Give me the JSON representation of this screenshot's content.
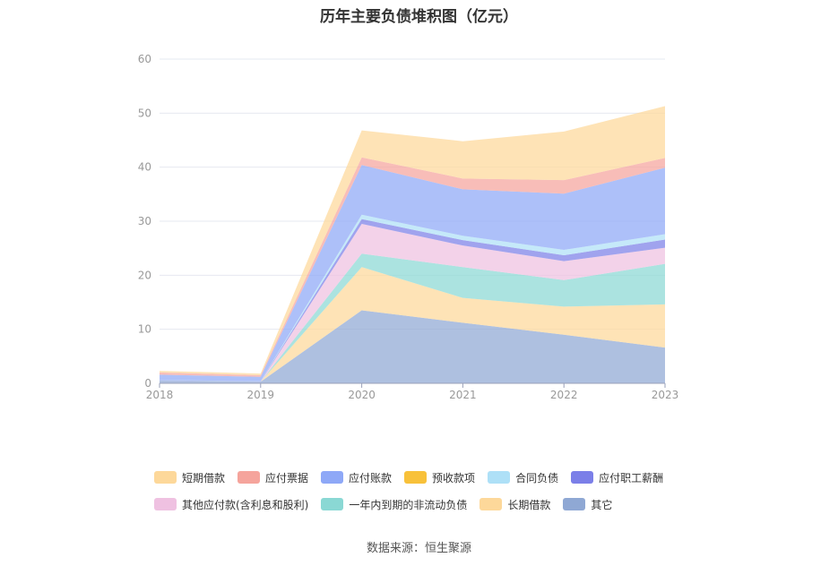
{
  "chart_data": {
    "type": "area",
    "title": "历年主要负债堆积图（亿元）",
    "categories": [
      "2018",
      "2019",
      "2020",
      "2021",
      "2022",
      "2023"
    ],
    "ylim": [
      0,
      60
    ],
    "yticks": [
      0,
      10,
      20,
      30,
      40,
      50,
      60
    ],
    "stacked": true,
    "grid": true,
    "legend_position": "bottom",
    "series": [
      {
        "name": "其它",
        "color": "#8fa8d4",
        "values": [
          0.5,
          0.3,
          13.5,
          11.2,
          9.0,
          6.6
        ]
      },
      {
        "name": "长期借款",
        "color": "#fdd89a",
        "values": [
          0,
          0,
          8.0,
          4.6,
          5.2,
          8.0
        ]
      },
      {
        "name": "一年内到期的非流动负债",
        "color": "#8ad8d4",
        "values": [
          0,
          0,
          2.5,
          5.7,
          4.9,
          7.5
        ]
      },
      {
        "name": "其他应付款(含利息和股利)",
        "color": "#efc1e1",
        "values": [
          0,
          0,
          5.5,
          4.0,
          3.5,
          3.0
        ]
      },
      {
        "name": "应付职工薪酬",
        "color": "#7b7fe8",
        "values": [
          0.05,
          0.05,
          0.9,
          1.0,
          1.1,
          1.5
        ]
      },
      {
        "name": "合同负债",
        "color": "#aee0f7",
        "values": [
          0.05,
          0.05,
          0.8,
          0.8,
          1.0,
          1.0
        ]
      },
      {
        "name": "预收款项",
        "color": "#f8c13a",
        "values": [
          0,
          0,
          0,
          0,
          0,
          0
        ]
      },
      {
        "name": "应付账款",
        "color": "#8ea8f7",
        "values": [
          1.0,
          0.8,
          9.2,
          8.6,
          10.4,
          12.3
        ]
      },
      {
        "name": "应付票据",
        "color": "#f5a49c",
        "values": [
          0.4,
          0.3,
          1.4,
          2.0,
          2.5,
          1.8
        ]
      },
      {
        "name": "短期借款",
        "color": "#fdd89a",
        "values": [
          0.3,
          0.3,
          5.0,
          6.9,
          9.0,
          9.6
        ]
      }
    ]
  },
  "legend": {
    "row1": [
      {
        "label": "短期借款",
        "color": "#fdd89a"
      },
      {
        "label": "应付票据",
        "color": "#f5a49c"
      },
      {
        "label": "应付账款",
        "color": "#8ea8f7"
      },
      {
        "label": "预收款项",
        "color": "#f8c13a"
      },
      {
        "label": "合同负债",
        "color": "#aee0f7"
      },
      {
        "label": "应付职工薪酬",
        "color": "#7b7fe8"
      }
    ],
    "row2": [
      {
        "label": "其他应付款(含利息和股利)",
        "color": "#efc1e1"
      },
      {
        "label": "一年内到期的非流动负债",
        "color": "#8ad8d4"
      },
      {
        "label": "长期借款",
        "color": "#fdd89a"
      },
      {
        "label": "其它",
        "color": "#8fa8d4"
      }
    ]
  },
  "source": "数据来源：恒生聚源"
}
